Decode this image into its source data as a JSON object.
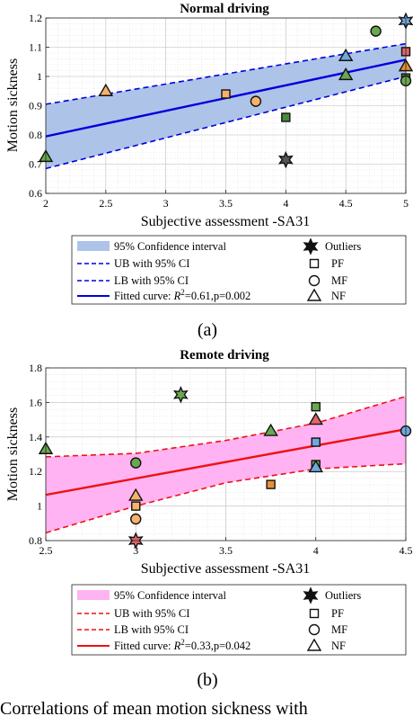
{
  "chart_data": [
    {
      "type": "scatter",
      "title": "Normal driving",
      "xlabel": "Subjective assessment -SA31",
      "ylabel": "Motion sickness",
      "xlim": [
        2,
        5
      ],
      "ylim": [
        0.6,
        1.2
      ],
      "xticks": [
        "2",
        "2.5",
        "3",
        "3.5",
        "4",
        "4.5",
        "5"
      ],
      "yticks": [
        "0.6",
        "0.7",
        "0.8",
        "0.9",
        "1",
        "1.1",
        "1.2"
      ],
      "grid": true,
      "fit": {
        "x": [
          2,
          5
        ],
        "y": [
          0.795,
          1.057
        ]
      },
      "ci_upper": {
        "x": [
          2,
          5
        ],
        "y": [
          0.905,
          1.112
        ]
      },
      "ci_lower": {
        "x": [
          2,
          5
        ],
        "y": [
          0.685,
          1.0
        ]
      },
      "points": [
        {
          "x": 2.0,
          "y": 0.725,
          "shape": "triangle",
          "color": "#6aa84f"
        },
        {
          "x": 2.5,
          "y": 0.95,
          "shape": "triangle",
          "color": "#f6b26b"
        },
        {
          "x": 3.5,
          "y": 0.94,
          "shape": "square",
          "color": "#f6b26b"
        },
        {
          "x": 3.75,
          "y": 0.915,
          "shape": "circle",
          "color": "#f6b26b"
        },
        {
          "x": 4.0,
          "y": 0.86,
          "shape": "square",
          "color": "#4a8a3a"
        },
        {
          "x": 4.0,
          "y": 0.715,
          "shape": "star",
          "color": "#555555"
        },
        {
          "x": 4.5,
          "y": 1.07,
          "shape": "triangle",
          "color": "#6fa8dc"
        },
        {
          "x": 4.5,
          "y": 1.005,
          "shape": "triangle",
          "color": "#6aa84f"
        },
        {
          "x": 4.75,
          "y": 1.155,
          "shape": "circle",
          "color": "#6aa84f"
        },
        {
          "x": 5.0,
          "y": 1.19,
          "shape": "star",
          "color": "#6fa8dc"
        },
        {
          "x": 5.0,
          "y": 1.085,
          "shape": "square",
          "color": "#e06666"
        },
        {
          "x": 5.0,
          "y": 1.035,
          "shape": "triangle",
          "color": "#e69138"
        },
        {
          "x": 5.0,
          "y": 0.995,
          "shape": "square",
          "color": "#4a8a3a"
        },
        {
          "x": 5.0,
          "y": 0.985,
          "shape": "circle",
          "color": "#6aa84f"
        }
      ],
      "colors": {
        "line": "#0000dd",
        "band": "#aec3e8"
      },
      "legend": {
        "ci": "95% Confidence interval",
        "ub": "UB with 95% CI",
        "lb": "LB with 95% CI",
        "fit_prefix": "Fitted curve: ",
        "fit_r": "R",
        "fit_sup": "2",
        "fit_rest": "=0.61,p=0.002",
        "outliers": "Outliers",
        "pf": "PF",
        "mf": "MF",
        "nf": "NF"
      },
      "caption": "(a)"
    },
    {
      "type": "scatter",
      "title": "Remote driving",
      "xlabel": "Subjective assessment -SA31",
      "ylabel": "Motion sickness",
      "xlim": [
        2.5,
        4.5
      ],
      "ylim": [
        0.8,
        1.8
      ],
      "xticks": [
        "2.5",
        "3",
        "3.5",
        "4",
        "4.5"
      ],
      "yticks": [
        "0.8",
        "1",
        "1.2",
        "1.4",
        "1.6",
        "1.8"
      ],
      "grid": true,
      "fit": {
        "x": [
          2.5,
          4.5
        ],
        "y": [
          1.065,
          1.445
        ]
      },
      "ci_upper": {
        "x": [
          2.5,
          3.0,
          3.5,
          4.0,
          4.5
        ],
        "y": [
          1.285,
          1.305,
          1.38,
          1.48,
          1.635
        ]
      },
      "ci_lower": {
        "x": [
          2.5,
          3.0,
          3.5,
          4.0,
          4.5
        ],
        "y": [
          0.845,
          1.0,
          1.135,
          1.215,
          1.245
        ]
      },
      "points": [
        {
          "x": 2.5,
          "y": 1.33,
          "shape": "triangle",
          "color": "#6aa84f"
        },
        {
          "x": 3.0,
          "y": 1.25,
          "shape": "circle",
          "color": "#6aa84f"
        },
        {
          "x": 3.0,
          "y": 1.06,
          "shape": "triangle",
          "color": "#f6b26b"
        },
        {
          "x": 3.0,
          "y": 1.0,
          "shape": "square",
          "color": "#f6b26b"
        },
        {
          "x": 3.0,
          "y": 0.925,
          "shape": "circle",
          "color": "#f6b26b"
        },
        {
          "x": 3.0,
          "y": 0.8,
          "shape": "star",
          "color": "#e06666"
        },
        {
          "x": 3.25,
          "y": 1.645,
          "shape": "star",
          "color": "#6aa84f"
        },
        {
          "x": 3.75,
          "y": 1.435,
          "shape": "triangle",
          "color": "#6aa84f"
        },
        {
          "x": 3.75,
          "y": 1.125,
          "shape": "square",
          "color": "#e69138"
        },
        {
          "x": 4.0,
          "y": 1.575,
          "shape": "square",
          "color": "#6aa84f"
        },
        {
          "x": 4.0,
          "y": 1.5,
          "shape": "triangle",
          "color": "#e06666"
        },
        {
          "x": 4.0,
          "y": 1.37,
          "shape": "square",
          "color": "#6fa8dc"
        },
        {
          "x": 4.0,
          "y": 1.24,
          "shape": "square",
          "color": "#6aa84f"
        },
        {
          "x": 4.0,
          "y": 1.225,
          "shape": "triangle",
          "color": "#6fa8dc"
        },
        {
          "x": 4.5,
          "y": 1.435,
          "shape": "circle",
          "color": "#6fa8dc"
        }
      ],
      "colors": {
        "line": "#ee1111",
        "band": "#ffb3f2"
      },
      "legend": {
        "ci": "95% Confidence interval",
        "ub": "UB with 95% CI",
        "lb": "LB with 95% CI",
        "fit_prefix": "Fitted curve: ",
        "fit_r": "R",
        "fit_sup": "2",
        "fit_rest": "=0.33,p=0.042",
        "outliers": "Outliers",
        "pf": "PF",
        "mf": "MF",
        "nf": "NF"
      },
      "caption": "(b)"
    }
  ],
  "footer_text": "Correlations of mean motion sickness with"
}
